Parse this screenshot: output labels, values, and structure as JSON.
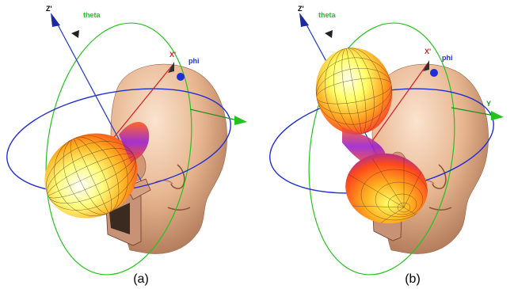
{
  "panels": [
    {
      "label": "(a)",
      "axis_labels": {
        "z": "Z'",
        "x": "X'",
        "theta": "theta",
        "phi": "phi"
      }
    },
    {
      "label": "(b)",
      "axis_labels": {
        "z": "Z'",
        "x": "X'",
        "theta": "theta",
        "phi": "phi",
        "y": "Y"
      }
    }
  ],
  "colors": {
    "theta_ring": "#22c41c",
    "phi_ring": "#1f2fd4",
    "z_axis": "#2b3fd0",
    "x_axis": "#d42020",
    "y_axis": "#1f8f1f",
    "head_skin": "#e8b896",
    "lobe_hot": "#ffff55",
    "lobe_mid": "#ff6a1a",
    "lobe_cool": "#6a1fd0"
  }
}
